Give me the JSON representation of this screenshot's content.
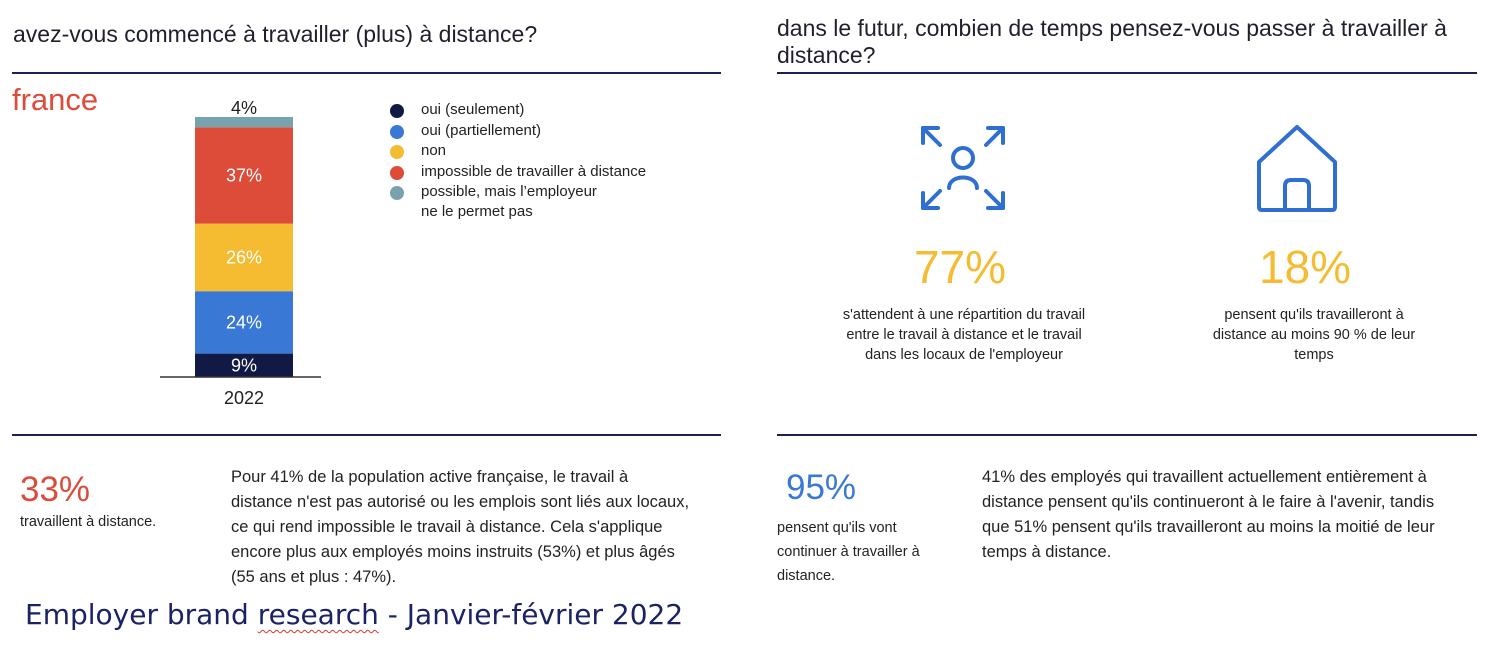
{
  "left": {
    "question": "avez-vous commencé à travailler (plus) à distance?",
    "country": "france",
    "stat": {
      "value": "33%",
      "caption": "travaillent à distance."
    },
    "paragraph": "Pour 41% de la population active française, le travail à distance n'est pas autorisé ou les emplois sont liés aux locaux, ce qui rend impossible le travail à distance. Cela s'applique encore plus aux employés moins instruits (53%) et plus âgés (55 ans et plus : 47%)."
  },
  "right": {
    "question": "dans le futur, combien de temps pensez-vous passer à travailler à distance?",
    "stats": [
      {
        "icon": "hybrid-arrows-person-icon",
        "value": "77%",
        "text": "s'attendent à une répartition du travail entre le travail à distance et le travail dans les locaux de l'employeur"
      },
      {
        "icon": "house-icon",
        "value": "18%",
        "text": "pensent qu'ils travailleront à distance au moins 90 % de leur temps"
      }
    ],
    "bottom_stat": {
      "value": "95%",
      "caption": "pensent qu'ils vont continuer à travailler à distance."
    },
    "paragraph": "41% des employés qui travaillent actuellement entièrement à distance pensent qu'ils continueront à le faire à l'avenir, tandis que 51% pensent qu'ils travailleront au moins la moitié de leur temps à distance."
  },
  "footer": {
    "before": "Employer brand ",
    "squiggle": "research",
    "after": " - Janvier-février 2022"
  },
  "chart_data": {
    "type": "bar",
    "stacked": true,
    "categories": [
      "2022"
    ],
    "series": [
      {
        "name": "oui (seulement)",
        "color": "#111a44",
        "values": [
          9
        ],
        "label": "9%"
      },
      {
        "name": "oui (partiellement)",
        "color": "#3a78d6",
        "values": [
          24
        ],
        "label": "24%"
      },
      {
        "name": "non",
        "color": "#f5bc32",
        "values": [
          26
        ],
        "label": "26%"
      },
      {
        "name": "impossible de travailler à distance",
        "color": "#dd4b39",
        "values": [
          37
        ],
        "label": "37%"
      },
      {
        "name": "possible, mais l’employeur ne le permet pas",
        "color": "#78a3ae",
        "values": [
          4
        ],
        "label": "4%"
      }
    ],
    "legend": [
      {
        "color": "#111a44",
        "lines": [
          "oui (seulement)"
        ]
      },
      {
        "color": "#3a78d6",
        "lines": [
          "oui (partiellement)"
        ]
      },
      {
        "color": "#f5bc32",
        "lines": [
          "non"
        ]
      },
      {
        "color": "#dd4b39",
        "lines": [
          "impossible de travailler à distance"
        ]
      },
      {
        "color": "#78a3ae",
        "lines": [
          "possible, mais l’employeur",
          "ne le permet pas"
        ]
      }
    ],
    "legend_position": "right",
    "ylim": [
      0,
      100
    ],
    "grid": false
  }
}
